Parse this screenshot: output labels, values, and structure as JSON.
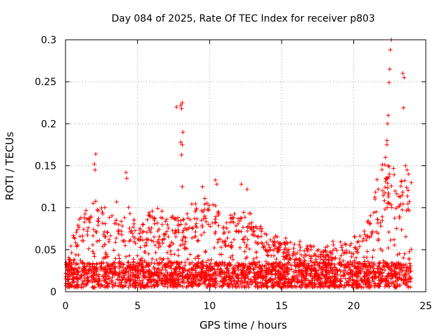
{
  "chart_data": {
    "type": "scatter",
    "title": "Day 084 of 2025, Rate Of TEC Index for receiver p803",
    "xlabel": "GPS time / hours",
    "ylabel": "ROTI / TECUs",
    "xlim": [
      0,
      25
    ],
    "ylim": [
      0,
      0.3
    ],
    "xticks": [
      0,
      5,
      10,
      15,
      20,
      25
    ],
    "yticks": [
      0,
      0.05,
      0.1,
      0.15,
      0.2,
      0.25,
      0.3
    ],
    "xtick_labels": [
      "0",
      "5",
      "10",
      "15",
      "20",
      "25"
    ],
    "ytick_labels": [
      "0",
      "0.05",
      "0.1",
      "0.15",
      "0.2",
      "0.25",
      "0.3"
    ],
    "grid": true,
    "marker": "+",
    "color": "#ff0000",
    "envelope": {
      "description": "upper extent of the dense red point cloud by hour",
      "x": [
        0,
        1,
        2,
        3,
        4,
        5,
        6,
        7,
        8,
        9,
        10,
        11,
        12,
        13,
        14,
        15,
        16,
        17,
        18,
        19,
        20,
        21,
        22,
        23,
        24
      ],
      "y": [
        0.03,
        0.09,
        0.11,
        0.09,
        0.12,
        0.07,
        0.1,
        0.09,
        0.09,
        0.11,
        0.12,
        0.08,
        0.1,
        0.09,
        0.07,
        0.06,
        0.06,
        0.05,
        0.05,
        0.06,
        0.06,
        0.08,
        0.16,
        0.14,
        0.12
      ]
    },
    "outliers": {
      "x": [
        2.0,
        2.1,
        2.05,
        4.2,
        4.25,
        7.7,
        8.0,
        8.1,
        8.05,
        8.15,
        8.0,
        8.1,
        8.05,
        8.1,
        9.5,
        10.4,
        10.5,
        12.2,
        12.6,
        22.3,
        22.4,
        22.5,
        22.6,
        22.55,
        22.45,
        22.35,
        22.2,
        22.3,
        23.4,
        23.5,
        23.45,
        23.6,
        23.7,
        23.8,
        24.0
      ],
      "y": [
        0.152,
        0.164,
        0.145,
        0.142,
        0.135,
        0.22,
        0.222,
        0.225,
        0.218,
        0.19,
        0.178,
        0.175,
        0.163,
        0.125,
        0.125,
        0.133,
        0.128,
        0.128,
        0.122,
        0.175,
        0.21,
        0.265,
        0.3,
        0.288,
        0.249,
        0.2,
        0.16,
        0.18,
        0.26,
        0.255,
        0.219,
        0.15,
        0.145,
        0.14,
        0.13
      ]
    },
    "seed": 84
  }
}
